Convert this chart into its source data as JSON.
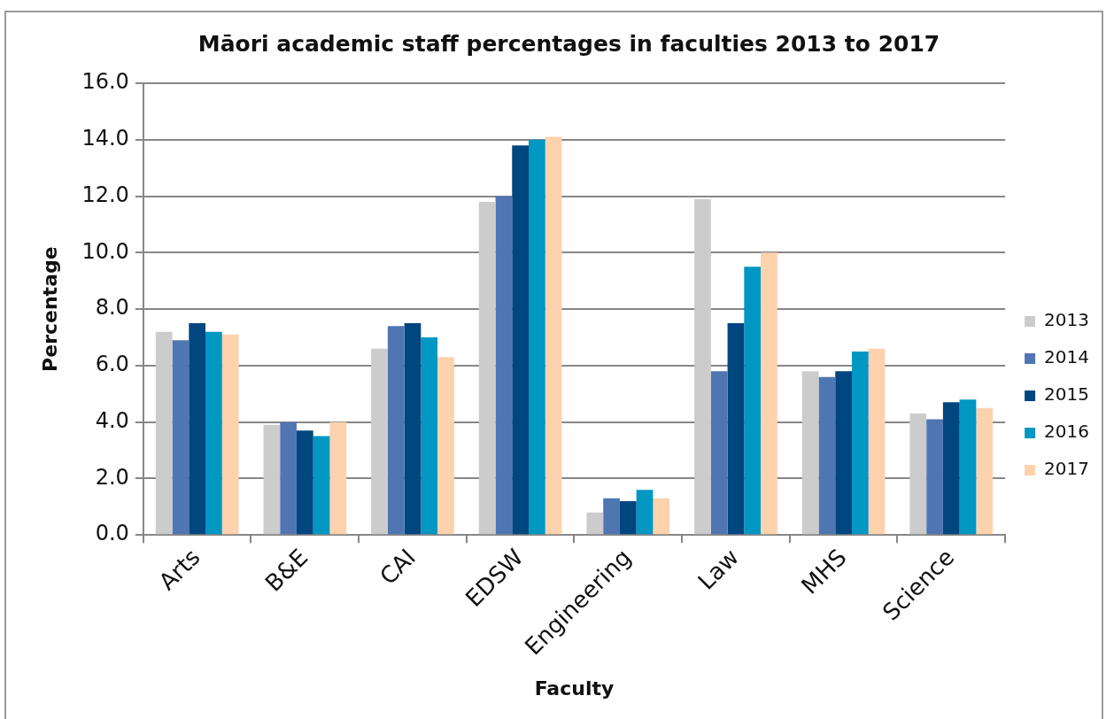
{
  "chart_data": {
    "type": "bar",
    "title": "Māori academic staff percentages in faculties 2013 to 2017",
    "xlabel": "Faculty",
    "ylabel": "Percentage",
    "categories": [
      "Arts",
      "B&E",
      "CAI",
      "EDSW",
      "Engineering",
      "Law",
      "MHS",
      "Science"
    ],
    "series": [
      {
        "name": "2013",
        "color": "#cccccc",
        "values": [
          7.2,
          3.9,
          6.6,
          11.8,
          0.8,
          11.9,
          5.8,
          4.3
        ]
      },
      {
        "name": "2014",
        "color": "#4f76b2",
        "values": [
          6.9,
          4.0,
          7.4,
          12.0,
          1.3,
          5.8,
          5.6,
          4.1
        ]
      },
      {
        "name": "2015",
        "color": "#00467f",
        "values": [
          7.5,
          3.7,
          7.5,
          13.8,
          1.2,
          7.5,
          5.8,
          4.7
        ]
      },
      {
        "name": "2016",
        "color": "#0097c3",
        "values": [
          7.2,
          3.5,
          7.0,
          14.0,
          1.6,
          9.5,
          6.5,
          4.8
        ]
      },
      {
        "name": "2017",
        "color": "#fdd2ad",
        "values": [
          7.1,
          4.0,
          6.3,
          14.1,
          1.3,
          10.0,
          6.6,
          4.5
        ]
      }
    ],
    "ylim": [
      0,
      16
    ],
    "yticks": [
      {
        "value": 0,
        "label": "0.0"
      },
      {
        "value": 2,
        "label": "2.0"
      },
      {
        "value": 4,
        "label": "4.0"
      },
      {
        "value": 6,
        "label": "6.0"
      },
      {
        "value": 8,
        "label": "8.0"
      },
      {
        "value": 10,
        "label": "10.0"
      },
      {
        "value": 12,
        "label": "12.0"
      },
      {
        "value": 14,
        "label": "14.0"
      },
      {
        "value": 16,
        "label": "16.0"
      }
    ],
    "grid": "y",
    "legend": "right"
  }
}
